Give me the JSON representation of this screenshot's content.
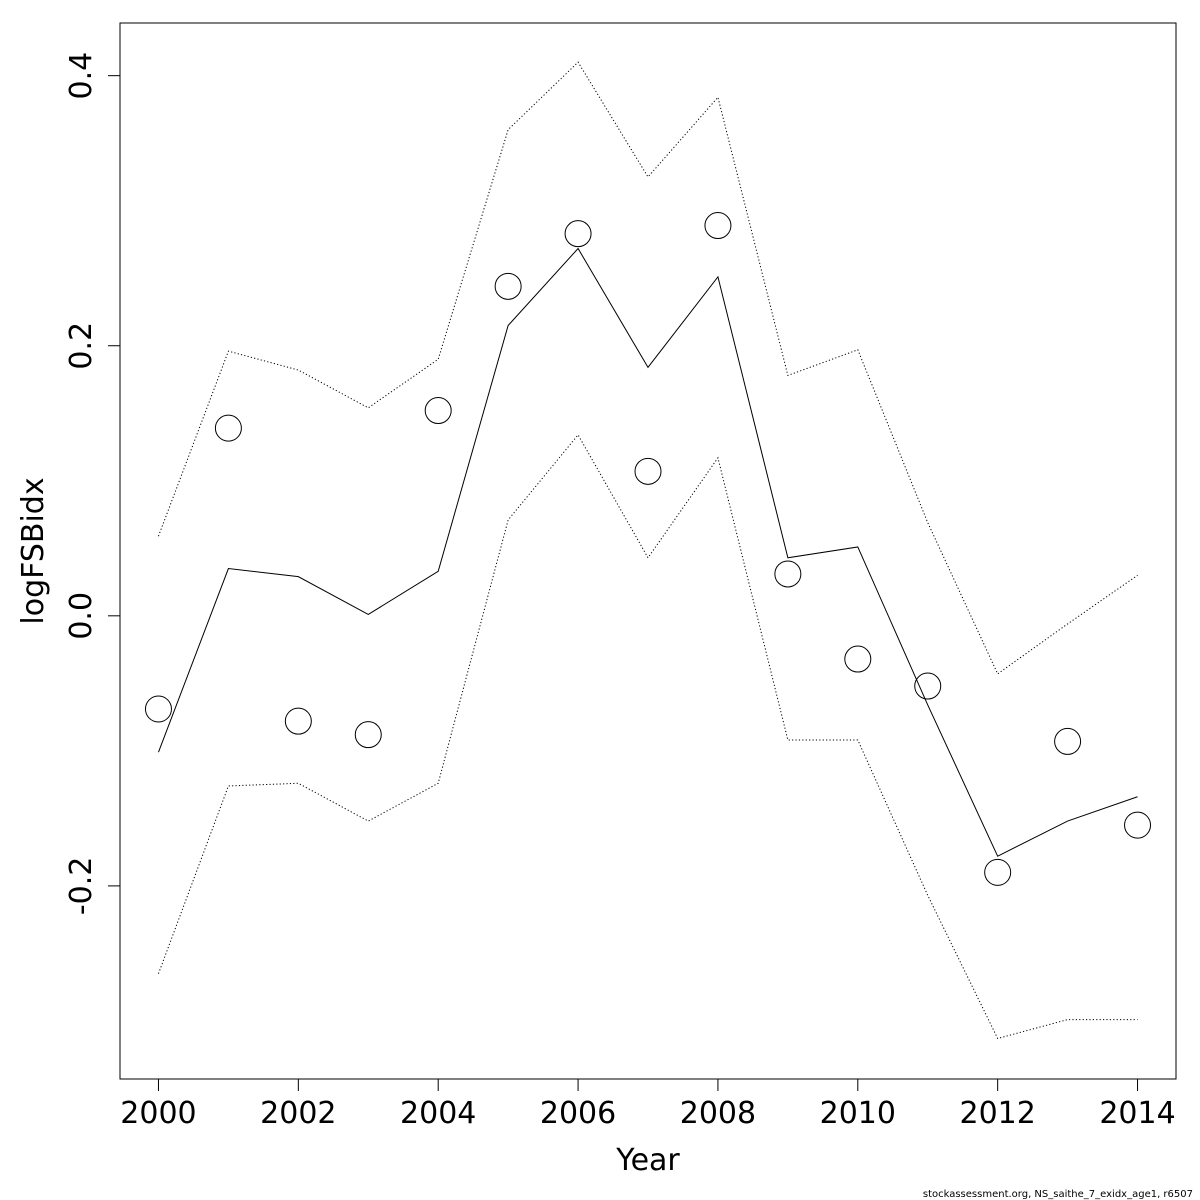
{
  "chart_data": {
    "type": "line",
    "xlabel": "Year",
    "ylabel": "logFSBidx",
    "xlim": [
      1999.45,
      2014.55
    ],
    "ylim": [
      -0.343,
      0.439
    ],
    "x_ticks": [
      2000,
      2002,
      2004,
      2006,
      2008,
      2010,
      2012,
      2014
    ],
    "x_tick_labels": [
      "2000",
      "2002",
      "2004",
      "2006",
      "2008",
      "2010",
      "2012",
      "2014"
    ],
    "y_ticks": [
      -0.2,
      0.0,
      0.2,
      0.4
    ],
    "y_tick_labels": [
      "-0.2",
      "0.0",
      "0.2",
      "0.4"
    ],
    "grid": false,
    "x": [
      2000,
      2001,
      2002,
      2003,
      2004,
      2005,
      2006,
      2007,
      2008,
      2009,
      2010,
      2011,
      2012,
      2013,
      2014
    ],
    "observed": [
      -0.069,
      0.139,
      -0.078,
      -0.088,
      0.152,
      0.244,
      0.283,
      0.107,
      0.289,
      0.031,
      -0.032,
      -0.052,
      -0.19,
      -0.093,
      -0.155
    ],
    "fitted": [
      -0.101,
      0.035,
      0.029,
      0.001,
      0.033,
      0.215,
      0.272,
      0.184,
      0.251,
      0.043,
      0.051,
      -0.066,
      -0.178,
      -0.152,
      -0.134
    ],
    "upper": [
      0.059,
      0.196,
      0.182,
      0.154,
      0.19,
      0.36,
      0.41,
      0.325,
      0.384,
      0.178,
      0.197,
      0.069,
      -0.043,
      -0.006,
      0.03
    ],
    "lower": [
      -0.265,
      -0.126,
      -0.124,
      -0.152,
      -0.124,
      0.071,
      0.134,
      0.043,
      0.117,
      -0.092,
      -0.092,
      -0.207,
      -0.313,
      -0.299,
      -0.299
    ],
    "colors": {
      "line": "#000000",
      "background": "#ffffff"
    }
  },
  "footnote": "stockassessment.org, NS_saithe_7_exidx_age1, r6507"
}
